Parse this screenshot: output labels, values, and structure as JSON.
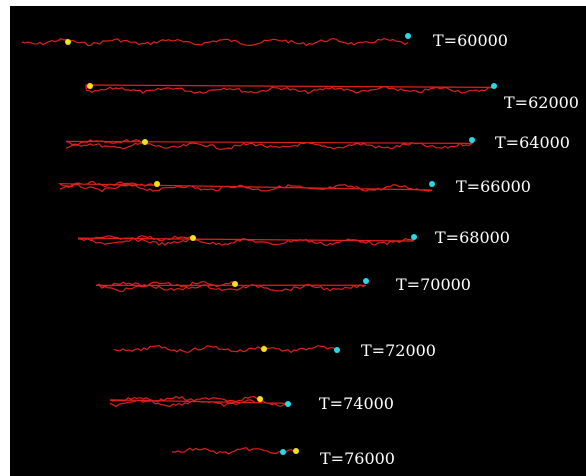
{
  "frames": [
    {
      "label": "T=60000"
    },
    {
      "label": "T=62000"
    },
    {
      "label": "T=64000"
    },
    {
      "label": "T=66000"
    },
    {
      "label": "T=68000"
    },
    {
      "label": "T=70000"
    },
    {
      "label": "T=72000"
    },
    {
      "label": "T=74000"
    },
    {
      "label": "T=76000"
    }
  ],
  "colors": {
    "background": "#000000",
    "chain": "#e0201c",
    "end_marker_a": "#f5e11a",
    "end_marker_b": "#27d9e6",
    "label": "#ffffff"
  }
}
